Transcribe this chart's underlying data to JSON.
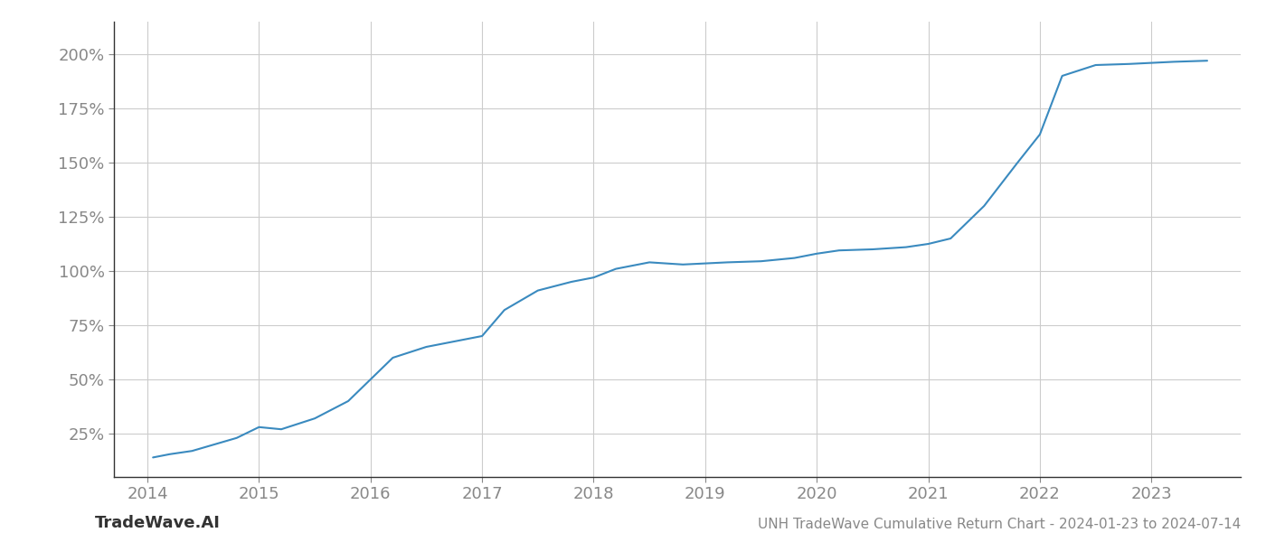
{
  "title": "UNH TradeWave Cumulative Return Chart - 2024-01-23 to 2024-07-14",
  "watermark": "TradeWave.AI",
  "line_color": "#3a8abf",
  "line_width": 1.5,
  "background_color": "#ffffff",
  "grid_color": "#cccccc",
  "x_years": [
    2014,
    2015,
    2016,
    2017,
    2018,
    2019,
    2020,
    2021,
    2022,
    2023
  ],
  "x_data": [
    2014.05,
    2014.2,
    2014.4,
    2014.6,
    2014.8,
    2015.0,
    2015.2,
    2015.5,
    2015.8,
    2016.0,
    2016.2,
    2016.5,
    2016.8,
    2017.0,
    2017.2,
    2017.5,
    2017.8,
    2018.0,
    2018.2,
    2018.5,
    2018.8,
    2019.0,
    2019.2,
    2019.5,
    2019.8,
    2020.0,
    2020.2,
    2020.5,
    2020.8,
    2021.0,
    2021.2,
    2021.5,
    2021.8,
    2022.0,
    2022.2,
    2022.5,
    2022.8,
    2023.0,
    2023.2,
    2023.5
  ],
  "y_data": [
    14.0,
    15.5,
    17.0,
    20.0,
    23.0,
    28.0,
    27.0,
    32.0,
    40.0,
    50.0,
    60.0,
    65.0,
    68.0,
    70.0,
    82.0,
    91.0,
    95.0,
    97.0,
    101.0,
    104.0,
    103.0,
    103.5,
    104.0,
    104.5,
    106.0,
    108.0,
    109.5,
    110.0,
    111.0,
    112.5,
    115.0,
    130.0,
    150.0,
    163.0,
    190.0,
    195.0,
    195.5,
    196.0,
    196.5,
    197.0
  ],
  "yticks": [
    25,
    50,
    75,
    100,
    125,
    150,
    175,
    200
  ],
  "ylim": [
    5,
    215
  ],
  "xlim": [
    2013.7,
    2023.8
  ],
  "tick_fontsize": 13,
  "label_color": "#888888",
  "footer_fontsize": 11,
  "watermark_fontsize": 13,
  "spine_color": "#333333"
}
